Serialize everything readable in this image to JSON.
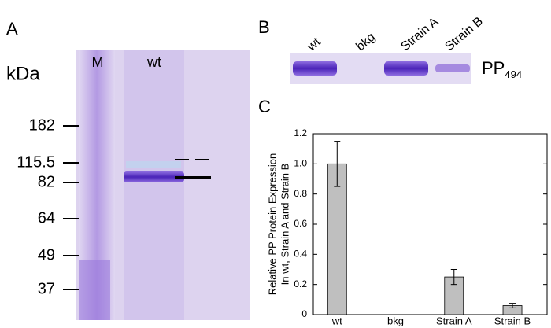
{
  "panel_a": {
    "label": "A",
    "unit": "kDa",
    "lanes": [
      "M",
      "wt"
    ],
    "markers": [
      182,
      115.5,
      82,
      64,
      49,
      37
    ]
  },
  "panel_b": {
    "label": "B",
    "lanes": [
      "wt",
      "bkg",
      "Strain A",
      "Strain B"
    ],
    "protein": {
      "text": "PP",
      "subscript": "494"
    }
  },
  "chart_data": {
    "type": "bar",
    "label": "C",
    "ylabel": [
      "Relative PP Protein Expression",
      "In wt, Strain A and Strain B"
    ],
    "categories": [
      "wt",
      "bkg",
      "Strain A",
      "Strain B"
    ],
    "values": [
      1.0,
      0,
      0.25,
      0.06
    ],
    "errors": [
      0.15,
      0,
      0.05,
      0.015
    ],
    "color": "#bfbfbf",
    "ylim": [
      0,
      1.2
    ],
    "yticks": [
      0,
      0.2,
      0.4,
      0.6,
      0.8,
      {
        "value": 1.0,
        "label": "1.0"
      },
      1.2
    ]
  }
}
